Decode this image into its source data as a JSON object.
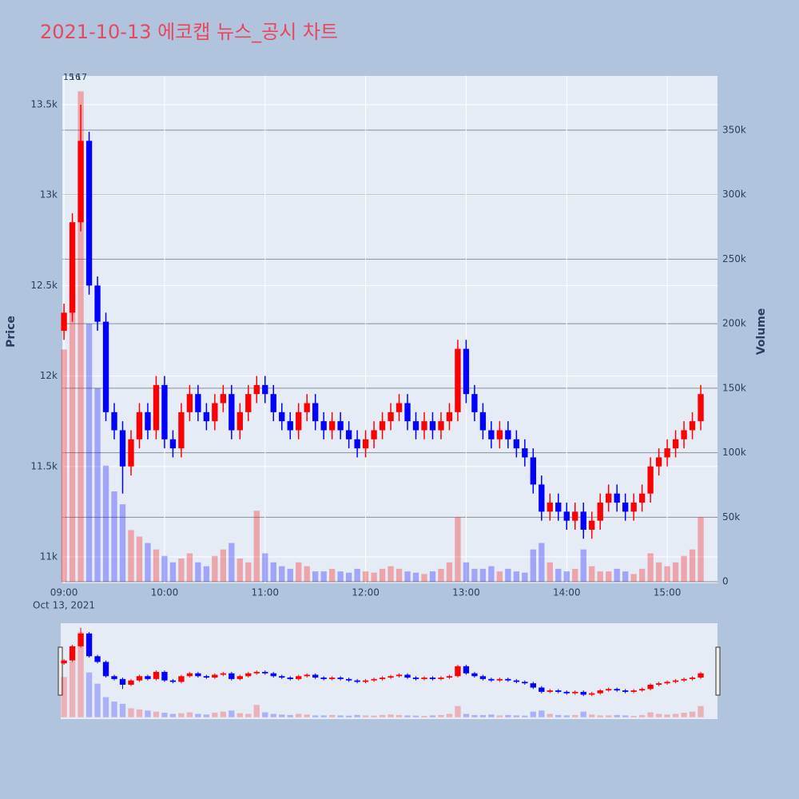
{
  "chart_data": {
    "type": "candlestick",
    "title": "2021-10-13 에코캡 뉴스_공시 차트",
    "y_title": "Price",
    "y2_title": "Volume",
    "x_date_label": "Oct 13, 2021",
    "annotations": [
      "15",
      "16",
      "17"
    ],
    "up_color": "#ff0000",
    "down_color": "#0000ff",
    "x": [
      "09:00",
      "09:05",
      "09:10",
      "09:15",
      "09:20",
      "09:25",
      "09:30",
      "09:35",
      "09:40",
      "09:45",
      "09:50",
      "09:55",
      "10:00",
      "10:05",
      "10:10",
      "10:15",
      "10:20",
      "10:25",
      "10:30",
      "10:35",
      "10:40",
      "10:45",
      "10:50",
      "10:55",
      "11:00",
      "11:05",
      "11:10",
      "11:15",
      "11:20",
      "11:25",
      "11:30",
      "11:35",
      "11:40",
      "11:45",
      "11:50",
      "11:55",
      "12:00",
      "12:05",
      "12:10",
      "12:15",
      "12:20",
      "12:25",
      "12:30",
      "12:35",
      "12:40",
      "12:45",
      "12:50",
      "12:55",
      "13:00",
      "13:05",
      "13:10",
      "13:15",
      "13:20",
      "13:25",
      "13:30",
      "13:35",
      "13:40",
      "13:45",
      "13:50",
      "13:55",
      "14:00",
      "14:05",
      "14:10",
      "14:15",
      "14:20",
      "14:25",
      "14:30",
      "14:35",
      "14:40",
      "14:45",
      "14:50",
      "14:55",
      "15:00",
      "15:05",
      "15:10",
      "15:15",
      "15:20"
    ],
    "open": [
      12250,
      12350,
      12850,
      13300,
      12500,
      12300,
      11800,
      11700,
      11500,
      11650,
      11800,
      11700,
      11950,
      11650,
      11600,
      11800,
      11900,
      11800,
      11750,
      11850,
      11900,
      11700,
      11800,
      11900,
      11950,
      11900,
      11800,
      11750,
      11700,
      11800,
      11850,
      11750,
      11700,
      11750,
      11700,
      11650,
      11600,
      11650,
      11700,
      11750,
      11800,
      11850,
      11750,
      11700,
      11750,
      11700,
      11750,
      11800,
      12150,
      11900,
      11800,
      11700,
      11650,
      11700,
      11650,
      11600,
      11550,
      11400,
      11250,
      11300,
      11250,
      11200,
      11250,
      11150,
      11200,
      11300,
      11350,
      11300,
      11250,
      11300,
      11350,
      11500,
      11550,
      11600,
      11650,
      11700,
      11750
    ],
    "high": [
      12400,
      12900,
      13500,
      13350,
      12550,
      12350,
      11850,
      11750,
      11700,
      11850,
      11850,
      12000,
      12000,
      11700,
      11850,
      11950,
      11950,
      11850,
      11900,
      11950,
      11950,
      11850,
      11950,
      12000,
      12000,
      11950,
      11850,
      11800,
      11850,
      11900,
      11900,
      11800,
      11800,
      11800,
      11750,
      11700,
      11700,
      11750,
      11800,
      11850,
      11900,
      11900,
      11800,
      11800,
      11800,
      11800,
      11850,
      12200,
      12200,
      11950,
      11850,
      11750,
      11750,
      11750,
      11700,
      11650,
      11600,
      11450,
      11350,
      11350,
      11300,
      11300,
      11300,
      11250,
      11350,
      11400,
      11400,
      11350,
      11350,
      11400,
      11550,
      11600,
      11650,
      11700,
      11750,
      11800,
      11950
    ],
    "low": [
      12200,
      12300,
      12800,
      12450,
      12250,
      11750,
      11650,
      11350,
      11450,
      11600,
      11650,
      11650,
      11600,
      11550,
      11550,
      11750,
      11750,
      11700,
      11700,
      11800,
      11650,
      11650,
      11750,
      11850,
      11850,
      11750,
      11700,
      11650,
      11650,
      11750,
      11700,
      11650,
      11650,
      11650,
      11600,
      11550,
      11550,
      11600,
      11650,
      11700,
      11750,
      11700,
      11650,
      11650,
      11650,
      11650,
      11700,
      11750,
      11850,
      11750,
      11650,
      11600,
      11600,
      11600,
      11550,
      11500,
      11350,
      11200,
      11200,
      11200,
      11150,
      11150,
      11100,
      11100,
      11150,
      11250,
      11250,
      11200,
      11200,
      11250,
      11300,
      11450,
      11500,
      11550,
      11600,
      11650,
      11700
    ],
    "close": [
      12350,
      12850,
      13300,
      12500,
      12300,
      11800,
      11700,
      11500,
      11650,
      11800,
      11700,
      11950,
      11650,
      11600,
      11800,
      11900,
      11800,
      11750,
      11850,
      11900,
      11700,
      11800,
      11900,
      11950,
      11900,
      11800,
      11750,
      11700,
      11800,
      11850,
      11750,
      11700,
      11750,
      11700,
      11650,
      11600,
      11650,
      11700,
      11750,
      11800,
      11850,
      11750,
      11700,
      11750,
      11700,
      11750,
      11800,
      12150,
      11900,
      11800,
      11700,
      11650,
      11700,
      11650,
      11600,
      11550,
      11400,
      11250,
      11300,
      11250,
      11200,
      11250,
      11150,
      11200,
      11300,
      11350,
      11300,
      11250,
      11300,
      11350,
      11500,
      11550,
      11600,
      11650,
      11700,
      11750,
      11900
    ],
    "volume": [
      180000,
      250000,
      380000,
      200000,
      150000,
      90000,
      70000,
      60000,
      40000,
      35000,
      30000,
      25000,
      20000,
      15000,
      18000,
      22000,
      15000,
      12000,
      20000,
      25000,
      30000,
      18000,
      15000,
      55000,
      22000,
      15000,
      12000,
      10000,
      15000,
      12000,
      8000,
      8000,
      10000,
      8000,
      7000,
      10000,
      8000,
      7000,
      10000,
      12000,
      10000,
      8000,
      7000,
      6000,
      8000,
      10000,
      15000,
      50000,
      15000,
      10000,
      10000,
      12000,
      8000,
      10000,
      8000,
      7000,
      25000,
      30000,
      15000,
      10000,
      8000,
      10000,
      25000,
      12000,
      8000,
      8000,
      10000,
      8000,
      6000,
      10000,
      22000,
      15000,
      12000,
      15000,
      20000,
      25000,
      50000
    ],
    "xlim": [
      "08:59",
      "15:30"
    ],
    "xticks": [
      "09:00",
      "10:00",
      "11:00",
      "12:00",
      "13:00",
      "14:00",
      "15:00"
    ],
    "ylim": [
      10854,
      13659
    ],
    "yticks": [
      {
        "value": 11000,
        "label": "11k"
      },
      {
        "value": 11500,
        "label": "11.5k"
      },
      {
        "value": 12000,
        "label": "12k"
      },
      {
        "value": 12500,
        "label": "12.5k"
      },
      {
        "value": 13000,
        "label": "13k"
      },
      {
        "value": 13500,
        "label": "13.5k"
      }
    ],
    "y2lim": [
      -1200,
      392000
    ],
    "y2ticks": [
      0,
      {
        "value": 50000,
        "label": "50k"
      },
      {
        "value": 100000,
        "label": "100k"
      },
      {
        "value": 150000,
        "label": "150k"
      },
      {
        "value": 200000,
        "label": "200k"
      },
      {
        "value": 250000,
        "label": "250k"
      },
      {
        "value": 300000,
        "label": "300k"
      },
      {
        "value": 350000,
        "label": "350k"
      }
    ]
  }
}
